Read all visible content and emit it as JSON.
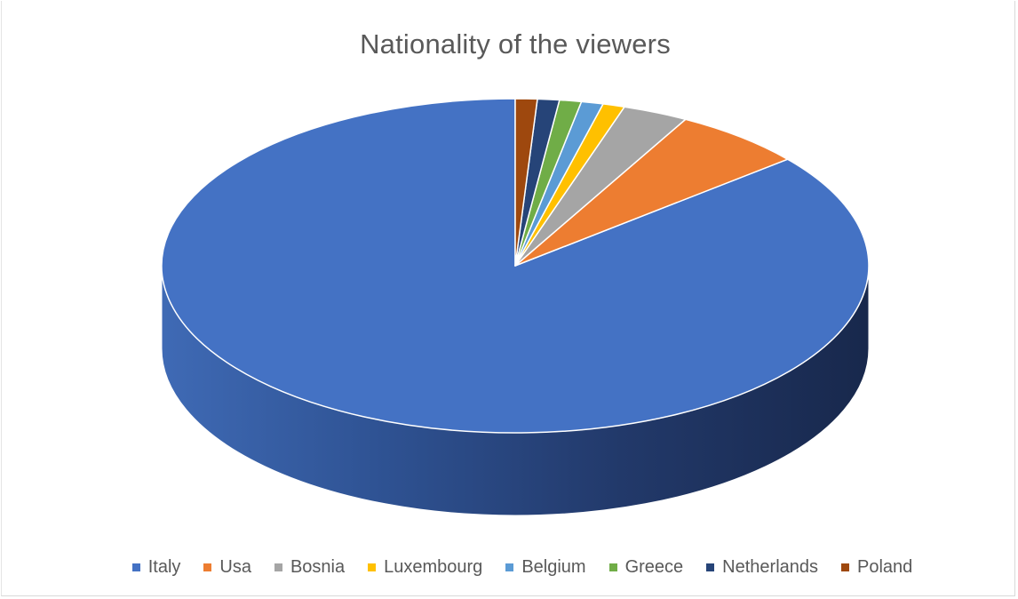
{
  "chart_data": {
    "type": "pie",
    "style": "3d",
    "title": "Nationality of the viewers",
    "legend_position": "bottom",
    "categories": [
      "Italy",
      "Usa",
      "Bosnia",
      "Luxembourg",
      "Belgium",
      "Greece",
      "Netherlands",
      "Poland"
    ],
    "values": [
      86,
      6,
      3,
      1,
      1,
      1,
      1,
      1
    ],
    "colors": [
      "#4472C4",
      "#ED7D31",
      "#A5A5A5",
      "#FFC000",
      "#5B9BD5",
      "#70AD47",
      "#264478",
      "#9E480E"
    ]
  }
}
